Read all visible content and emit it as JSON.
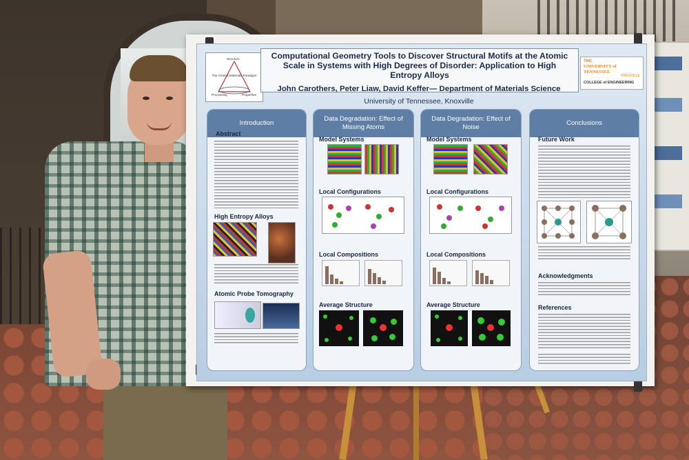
{
  "poster": {
    "title": "Computational Geometry Tools to Discover Structural Motifs at the Atomic Scale in Systems with High Degrees of Disorder: Application to High Entropy Alloys",
    "authors": "John Carothers, Peter Liaw, David Keffer— Department of Materials Science",
    "affiliation": "University of Tennessee, Knoxville",
    "logo_caption": "The Central Materials Paradigm",
    "logo_labels": [
      "Structure",
      "Processing",
      "Properties"
    ],
    "ut_logo": {
      "top": "THE",
      "name": "UNIVERSITY of TENNESSEE",
      "city": "KNOXVILLE",
      "college": "COLLEGE of ENGINEERING"
    },
    "columns": {
      "intro": {
        "heading": "Introduction",
        "abstract": "Abstract",
        "hea": "High Entropy Alloys",
        "apt": "Atomic Probe Tomography"
      },
      "missing": {
        "heading": "Data Degradation: Effect of Missing Atoms",
        "model": "Model Systems",
        "local_config": "Local Configurations",
        "local_comp": "Local Compositions",
        "avg": "Average Structure"
      },
      "noise": {
        "heading": "Data Degradation: Effect of Noise",
        "model": "Model Systems",
        "local_config": "Local Configurations",
        "local_comp": "Local Compositions",
        "avg": "Average Structure"
      },
      "conclusions": {
        "heading": "Conclusions",
        "future": "Future Work",
        "ack": "Acknowledgments",
        "refs": "References"
      }
    }
  },
  "colors": {
    "header_blue": "#5e7ea6",
    "poster_bg": "#dfe9f2",
    "title_text": "#1d2b4a",
    "ut_orange": "#ff8200"
  }
}
